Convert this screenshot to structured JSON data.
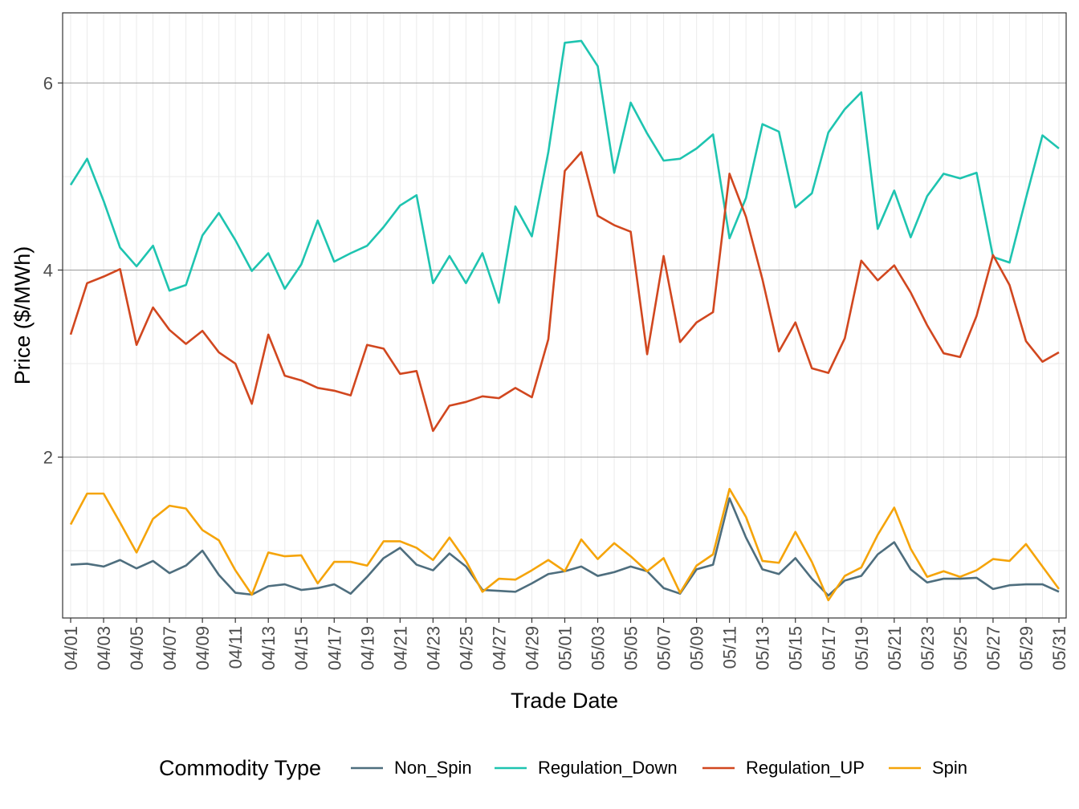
{
  "chart_data": {
    "type": "line",
    "xlabel": "Trade Date",
    "ylabel": "Price ($/MWh)",
    "ylim": [
      0.28,
      6.75
    ],
    "y_ticks": [
      2,
      4,
      6
    ],
    "grid": true,
    "legend": {
      "title": "Commodity Type",
      "placement": "bottom"
    },
    "x": [
      "04/01",
      "04/02",
      "04/03",
      "04/04",
      "04/05",
      "04/06",
      "04/07",
      "04/08",
      "04/09",
      "04/10",
      "04/11",
      "04/12",
      "04/13",
      "04/14",
      "04/15",
      "04/16",
      "04/17",
      "04/18",
      "04/19",
      "04/20",
      "04/21",
      "04/22",
      "04/23",
      "04/24",
      "04/25",
      "04/26",
      "04/27",
      "04/28",
      "04/29",
      "04/30",
      "05/01",
      "05/02",
      "05/03",
      "05/04",
      "05/05",
      "05/06",
      "05/07",
      "05/08",
      "05/09",
      "05/10",
      "05/11",
      "05/12",
      "05/13",
      "05/14",
      "05/15",
      "05/16",
      "05/17",
      "05/18",
      "05/19",
      "05/20",
      "05/21",
      "05/22",
      "05/23",
      "05/24",
      "05/25",
      "05/26",
      "05/27",
      "05/28",
      "05/29",
      "05/30",
      "05/31"
    ],
    "x_tick_labels": [
      "04/01",
      "04/03",
      "04/05",
      "04/07",
      "04/09",
      "04/11",
      "04/13",
      "04/15",
      "04/17",
      "04/19",
      "04/21",
      "04/23",
      "04/25",
      "04/27",
      "04/29",
      "05/01",
      "05/03",
      "05/05",
      "05/07",
      "05/09",
      "05/11",
      "05/13",
      "05/15",
      "05/17",
      "05/19",
      "05/21",
      "05/23",
      "05/25",
      "05/27",
      "05/29",
      "05/31"
    ],
    "series": [
      {
        "name": "Non_Spin",
        "color": "#4e6e7e",
        "values": [
          0.85,
          0.86,
          0.83,
          0.9,
          0.81,
          0.89,
          0.76,
          0.84,
          1.0,
          0.74,
          0.55,
          0.53,
          0.62,
          0.64,
          0.58,
          0.6,
          0.64,
          0.54,
          0.72,
          0.92,
          1.03,
          0.85,
          0.79,
          0.97,
          0.83,
          0.58,
          0.57,
          0.56,
          0.65,
          0.75,
          0.78,
          0.83,
          0.73,
          0.77,
          0.83,
          0.78,
          0.6,
          0.54,
          0.8,
          0.85,
          1.56,
          1.14,
          0.8,
          0.75,
          0.92,
          0.7,
          0.52,
          0.68,
          0.73,
          0.96,
          1.09,
          0.8,
          0.66,
          0.7,
          0.7,
          0.71,
          0.59,
          0.63,
          0.64,
          0.64,
          0.56
        ]
      },
      {
        "name": "Regulation_Down",
        "color": "#1ec4b0",
        "values": [
          4.91,
          5.19,
          4.74,
          4.24,
          4.04,
          4.26,
          3.78,
          3.84,
          4.37,
          4.61,
          4.32,
          3.99,
          4.18,
          3.8,
          4.06,
          4.53,
          4.09,
          4.18,
          4.26,
          4.46,
          4.69,
          4.8,
          3.86,
          4.15,
          3.86,
          4.18,
          3.65,
          4.68,
          4.36,
          5.26,
          6.43,
          6.45,
          6.18,
          5.04,
          5.79,
          5.46,
          5.17,
          5.19,
          5.3,
          5.45,
          4.34,
          4.77,
          5.56,
          5.48,
          4.67,
          4.82,
          5.47,
          5.72,
          5.9,
          4.44,
          4.85,
          4.35,
          4.79,
          5.03,
          4.98,
          5.04,
          4.14,
          4.08,
          4.77,
          5.44,
          5.3
        ]
      },
      {
        "name": "Regulation_UP",
        "color": "#d1471f",
        "values": [
          3.31,
          3.86,
          3.93,
          4.01,
          3.2,
          3.6,
          3.36,
          3.21,
          3.35,
          3.12,
          3.0,
          2.57,
          3.31,
          2.87,
          2.82,
          2.74,
          2.71,
          2.66,
          3.2,
          3.16,
          2.89,
          2.92,
          2.28,
          2.55,
          2.59,
          2.65,
          2.63,
          2.74,
          2.64,
          3.26,
          5.06,
          5.26,
          4.58,
          4.48,
          4.41,
          3.1,
          4.15,
          3.23,
          3.44,
          3.55,
          5.03,
          4.57,
          3.9,
          3.13,
          3.44,
          2.95,
          2.9,
          3.27,
          4.1,
          3.89,
          4.05,
          3.76,
          3.41,
          3.11,
          3.07,
          3.51,
          4.16,
          3.84,
          3.24,
          3.02,
          3.12
        ]
      },
      {
        "name": "Spin",
        "color": "#f5a40a",
        "values": [
          1.28,
          1.61,
          1.61,
          1.3,
          0.98,
          1.34,
          1.48,
          1.45,
          1.22,
          1.11,
          0.79,
          0.53,
          0.98,
          0.94,
          0.95,
          0.65,
          0.88,
          0.88,
          0.84,
          1.1,
          1.1,
          1.03,
          0.9,
          1.14,
          0.89,
          0.56,
          0.7,
          0.69,
          0.79,
          0.9,
          0.78,
          1.12,
          0.91,
          1.08,
          0.94,
          0.78,
          0.92,
          0.55,
          0.84,
          0.96,
          1.66,
          1.36,
          0.89,
          0.87,
          1.2,
          0.88,
          0.47,
          0.73,
          0.82,
          1.17,
          1.46,
          1.02,
          0.72,
          0.78,
          0.72,
          0.79,
          0.91,
          0.89,
          1.07,
          0.83,
          0.59
        ]
      }
    ]
  }
}
